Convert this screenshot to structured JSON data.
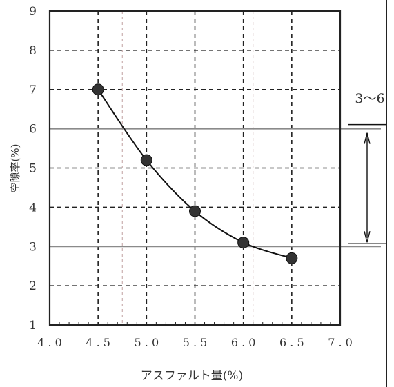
{
  "chart_data": {
    "type": "scatter",
    "xlabel": "アスファルト量(%)",
    "ylabel": "空隙率(%)",
    "xlim": [
      4.0,
      7.0
    ],
    "ylim": [
      1,
      9
    ],
    "x_ticks": [
      "4.0",
      "4.5",
      "5.0",
      "5.5",
      "6.0",
      "6.5",
      "7.0"
    ],
    "y_ticks": [
      "1",
      "2",
      "3",
      "4",
      "5",
      "6",
      "7",
      "8",
      "9"
    ],
    "grid": true,
    "series": [
      {
        "x": [
          4.5,
          5.0,
          5.5,
          6.0,
          6.5
        ],
        "y": [
          7.0,
          5.2,
          3.9,
          3.1,
          2.7
        ]
      }
    ],
    "reference_lines": [
      3,
      6
    ],
    "vertical_markers": [
      4.75,
      6.1
    ],
    "range_annotation": {
      "label": "3〜6",
      "from": 3,
      "to": 6
    }
  }
}
